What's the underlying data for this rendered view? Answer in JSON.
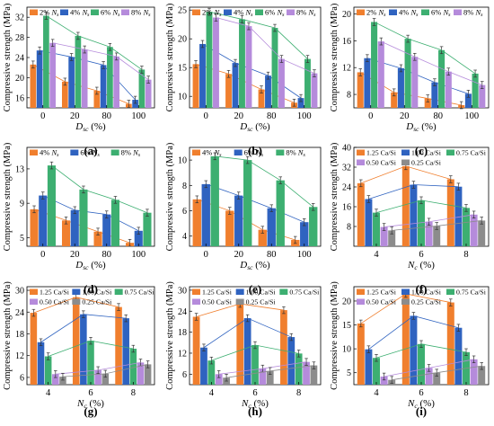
{
  "colors": {
    "orange": "#F07F2E",
    "blue": "#2F63C0",
    "green": "#3DAF71",
    "purple": "#B58BDB",
    "gray": "#8C8C8C",
    "axis": "#000000"
  },
  "chart_data": [
    {
      "type": "bar",
      "panel_label": "(a)",
      "ylabel": "Compressive strength (MPa)",
      "xlabel": "D",
      "xlabel_sub": "sc",
      "xlabel_unit": " (%)",
      "categories": [
        "0",
        "20",
        "80",
        "100"
      ],
      "ylim": [
        14,
        34
      ],
      "yticks": [
        16,
        20,
        24,
        28,
        32
      ],
      "legend": [
        [
          "2%",
          "N",
          "s"
        ],
        [
          "4%",
          "N",
          "s"
        ],
        [
          "6%",
          "N",
          "s"
        ],
        [
          "8%",
          "N",
          "s"
        ]
      ],
      "trend_lines": true,
      "series": [
        {
          "name": "2% Ns",
          "color": "orange",
          "values": [
            22.6,
            19.2,
            17.4,
            14.8
          ]
        },
        {
          "name": "4% Ns",
          "color": "blue",
          "values": [
            25.4,
            24.1,
            22.5,
            15.6
          ]
        },
        {
          "name": "6% Ns",
          "color": "green",
          "values": [
            32.3,
            28.3,
            26.1,
            21.6
          ]
        },
        {
          "name": "8% Ns",
          "color": "purple",
          "values": [
            26.9,
            25.6,
            24.2,
            19.6
          ]
        }
      ]
    },
    {
      "type": "bar",
      "panel_label": "(b)",
      "ylabel": "Compressive strength (MPa)",
      "xlabel": "D",
      "xlabel_sub": "sc",
      "xlabel_unit": " (%)",
      "categories": [
        "0",
        "20",
        "80",
        "100"
      ],
      "ylim": [
        8,
        25.5
      ],
      "yticks": [
        10,
        15,
        20,
        25
      ],
      "legend": [
        [
          "2%",
          "N",
          "s"
        ],
        [
          "4%",
          "N",
          "s"
        ],
        [
          "6%",
          "N",
          "s"
        ],
        [
          "8%",
          "N",
          "s"
        ]
      ],
      "trend_lines": true,
      "series": [
        {
          "name": "2% Ns",
          "color": "orange",
          "values": [
            15.6,
            13.9,
            11.2,
            8.9
          ]
        },
        {
          "name": "4% Ns",
          "color": "blue",
          "values": [
            19.1,
            15.8,
            13.6,
            9.7
          ]
        },
        {
          "name": "6% Ns",
          "color": "green",
          "values": [
            24.7,
            23.4,
            21.9,
            16.5
          ]
        },
        {
          "name": "8% Ns",
          "color": "purple",
          "values": [
            23.7,
            22.2,
            16.5,
            14.0
          ]
        }
      ]
    },
    {
      "type": "bar",
      "panel_label": "(c)",
      "ylabel": "Compressive strength (MPa)",
      "xlabel": "D",
      "xlabel_sub": "sc",
      "xlabel_unit": " (%)",
      "categories": [
        "0",
        "20",
        "80",
        "100"
      ],
      "ylim": [
        6,
        21
      ],
      "yticks": [
        8,
        12,
        16,
        20
      ],
      "legend": [
        [
          "2%",
          "N",
          "s"
        ],
        [
          "4%",
          "N",
          "s"
        ],
        [
          "6%",
          "N",
          "s"
        ],
        [
          "8%",
          "N",
          "s"
        ]
      ],
      "trend_lines": true,
      "series": [
        {
          "name": "2% Ns",
          "color": "orange",
          "values": [
            11.3,
            8.3,
            7.4,
            6.4
          ]
        },
        {
          "name": "4% Ns",
          "color": "blue",
          "values": [
            13.4,
            11.9,
            9.8,
            8.1
          ]
        },
        {
          "name": "6% Ns",
          "color": "green",
          "values": [
            18.8,
            16.3,
            14.6,
            11.1
          ]
        },
        {
          "name": "8% Ns",
          "color": "purple",
          "values": [
            15.9,
            13.6,
            11.4,
            9.4
          ]
        }
      ]
    },
    {
      "type": "bar",
      "panel_label": "(d)",
      "ylabel": "Compressive strength (MPa)",
      "xlabel": "D",
      "xlabel_sub": "sc",
      "xlabel_unit": " (%)",
      "categories": [
        "0",
        "20",
        "80",
        "100"
      ],
      "ylim": [
        4,
        15.5
      ],
      "yticks": [
        5,
        9,
        13
      ],
      "legend": [
        [
          "4%",
          "N",
          "s"
        ],
        [
          "6%",
          "N",
          "s"
        ],
        [
          "8%",
          "N",
          "s"
        ]
      ],
      "trend_lines": true,
      "series": [
        {
          "name": "4% Ns",
          "color": "orange",
          "values": [
            8.3,
            7.0,
            5.7,
            4.4
          ]
        },
        {
          "name": "6% Ns",
          "color": "blue",
          "values": [
            9.9,
            8.2,
            7.7,
            5.8
          ]
        },
        {
          "name": "8% Ns",
          "color": "green",
          "values": [
            13.4,
            10.6,
            9.4,
            7.9
          ]
        }
      ]
    },
    {
      "type": "bar",
      "panel_label": "(e)",
      "ylabel": "Compressive strength (MPa)",
      "xlabel": "D",
      "xlabel_sub": "sc",
      "xlabel_unit": " (%)",
      "categories": [
        "0",
        "20",
        "80",
        "100"
      ],
      "ylim": [
        3.2,
        11
      ],
      "yticks": [
        4,
        6,
        8,
        10
      ],
      "legend": [
        [
          "4%",
          "N",
          "s"
        ],
        [
          "6%",
          "N",
          "s"
        ],
        [
          "8%",
          "N",
          "s"
        ]
      ],
      "trend_lines": true,
      "series": [
        {
          "name": "4% Ns",
          "color": "orange",
          "values": [
            6.9,
            6.0,
            4.5,
            3.7
          ]
        },
        {
          "name": "6% Ns",
          "color": "blue",
          "values": [
            8.1,
            7.2,
            6.2,
            5.1
          ]
        },
        {
          "name": "8% Ns",
          "color": "green",
          "values": [
            10.3,
            10.0,
            8.4,
            6.3
          ]
        }
      ]
    },
    {
      "type": "bar",
      "panel_label": "(f)",
      "ylabel": "Compressive strength (MPa)",
      "xlabel": "N",
      "xlabel_sub": "c",
      "xlabel_unit": " (%)",
      "categories": [
        "4",
        "6",
        "8"
      ],
      "ylim": [
        0,
        40
      ],
      "yticks": [
        8,
        16,
        24,
        32,
        40
      ],
      "legend": [
        [
          "1.25 Ca/Si"
        ],
        [
          "1.00 Ca/Si"
        ],
        [
          "0.75 Ca/Si"
        ],
        [
          "0.50 Ca/Si"
        ],
        [
          "0.25 Ca/Si"
        ]
      ],
      "trend_lines": true,
      "series": [
        {
          "name": "1.25 Ca/Si",
          "color": "orange",
          "values": [
            25.5,
            32.4,
            27.1
          ]
        },
        {
          "name": "1.00 Ca/Si",
          "color": "blue",
          "values": [
            19.1,
            24.9,
            24.1
          ]
        },
        {
          "name": "0.75 Ca/Si",
          "color": "green",
          "values": [
            13.6,
            18.6,
            15.5
          ]
        },
        {
          "name": "0.50 Ca/Si",
          "color": "purple",
          "values": [
            7.8,
            9.9,
            12.8
          ]
        },
        {
          "name": "0.25 Ca/Si",
          "color": "gray",
          "values": [
            6.4,
            8.2,
            10.4
          ]
        }
      ]
    },
    {
      "type": "bar",
      "panel_label": "(g)",
      "ylabel": "Compressive strength (MPa)",
      "xlabel": "N",
      "xlabel_sub": "c",
      "xlabel_unit": " (%)",
      "categories": [
        "4",
        "6",
        "8"
      ],
      "ylim": [
        4,
        31
      ],
      "yticks": [
        6,
        12,
        18,
        24,
        30
      ],
      "legend": [
        [
          "1.25 Ca/Si"
        ],
        [
          "1.00 Ca/Si"
        ],
        [
          "0.75 Ca/Si"
        ],
        [
          "0.50 Ca/Si"
        ],
        [
          "0.25 Ca/Si"
        ]
      ],
      "trend_lines": true,
      "series": [
        {
          "name": "1.25 Ca/Si",
          "color": "orange",
          "values": [
            23.8,
            28.1,
            25.4
          ]
        },
        {
          "name": "1.00 Ca/Si",
          "color": "blue",
          "values": [
            15.7,
            23.4,
            22.3
          ]
        },
        {
          "name": "0.75 Ca/Si",
          "color": "green",
          "values": [
            11.8,
            16.1,
            13.9
          ]
        },
        {
          "name": "0.50 Ca/Si",
          "color": "purple",
          "values": [
            6.9,
            8.0,
            10.1
          ]
        },
        {
          "name": "0.25 Ca/Si",
          "color": "gray",
          "values": [
            6.2,
            7.0,
            9.6
          ]
        }
      ]
    },
    {
      "type": "bar",
      "panel_label": "(h)",
      "ylabel": "Compressive strength (MPa)",
      "xlabel": "N",
      "xlabel_sub": "c",
      "xlabel_unit": " (%)",
      "categories": [
        "4",
        "6",
        "8"
      ],
      "ylim": [
        3,
        31
      ],
      "yticks": [
        6,
        12,
        18,
        24,
        30
      ],
      "legend": [
        [
          "1.25 Ca/Si"
        ],
        [
          "1.00 Ca/Si"
        ],
        [
          "0.75 Ca/Si"
        ],
        [
          "0.50 Ca/Si"
        ],
        [
          "0.25 Ca/Si"
        ]
      ],
      "trend_lines": true,
      "series": [
        {
          "name": "1.25 Ca/Si",
          "color": "orange",
          "values": [
            22.4,
            26.1,
            24.3
          ]
        },
        {
          "name": "1.00 Ca/Si",
          "color": "blue",
          "values": [
            13.6,
            22.0,
            16.6
          ]
        },
        {
          "name": "0.75 Ca/Si",
          "color": "green",
          "values": [
            9.9,
            14.3,
            11.9
          ]
        },
        {
          "name": "0.50 Ca/Si",
          "color": "purple",
          "values": [
            6.0,
            7.6,
            9.5
          ]
        },
        {
          "name": "0.25 Ca/Si",
          "color": "gray",
          "values": [
            5.0,
            6.9,
            8.5
          ]
        }
      ]
    },
    {
      "type": "bar",
      "panel_label": "(i)",
      "ylabel": "Compressive strength (MPa)",
      "xlabel": "N",
      "xlabel_sub": "c",
      "xlabel_unit": " (%)",
      "categories": [
        "4",
        "6",
        "8"
      ],
      "ylim": [
        2.5,
        23
      ],
      "yticks": [
        5,
        10,
        15,
        20
      ],
      "legend": [
        [
          "1.25 Ca/Si"
        ],
        [
          "1.00 Ca/Si"
        ],
        [
          "0.75 Ca/Si"
        ],
        [
          "0.50 Ca/Si"
        ],
        [
          "0.25 Ca/Si"
        ]
      ],
      "trend_lines": true,
      "series": [
        {
          "name": "1.25 Ca/Si",
          "color": "orange",
          "values": [
            15.3,
            21.5,
            19.7
          ]
        },
        {
          "name": "1.00 Ca/Si",
          "color": "blue",
          "values": [
            9.9,
            16.9,
            14.4
          ]
        },
        {
          "name": "0.75 Ca/Si",
          "color": "green",
          "values": [
            8.1,
            11.0,
            9.3
          ]
        },
        {
          "name": "0.50 Ca/Si",
          "color": "purple",
          "values": [
            4.2,
            6.0,
            7.8
          ]
        },
        {
          "name": "0.25 Ca/Si",
          "color": "gray",
          "values": [
            3.5,
            5.0,
            6.4
          ]
        }
      ]
    }
  ]
}
